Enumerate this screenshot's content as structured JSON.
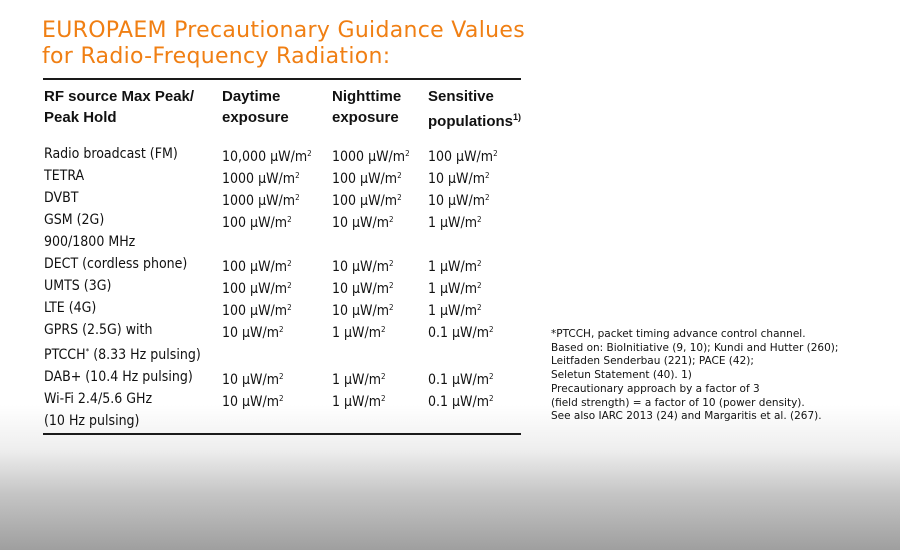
{
  "title": {
    "line1": "EUROPAEM Precautionary Guidance Values",
    "line2": "for Radio-Frequency Radiation:",
    "color": "#f07f13"
  },
  "table": {
    "headers": [
      {
        "line1": "RF source Max Peak/",
        "line2": "Peak Hold",
        "sup": ""
      },
      {
        "line1": "Daytime",
        "line2": "exposure",
        "sup": ""
      },
      {
        "line1": "Nighttime",
        "line2": "exposure",
        "sup": ""
      },
      {
        "line1": "Sensitive",
        "line2": "populations",
        "sup": "1)"
      }
    ],
    "rows": [
      {
        "source": [
          "Radio broadcast (FM)"
        ],
        "day": "10,000 μW/m²",
        "night": "1000 μW/m²",
        "sensitive": "100 μW/m²"
      },
      {
        "source": [
          "TETRA"
        ],
        "day": "1000 μW/m²",
        "night": "100 μW/m²",
        "sensitive": "10 μW/m²"
      },
      {
        "source": [
          "DVBT"
        ],
        "day": "1000 μW/m²",
        "night": "100 μW/m²",
        "sensitive": "10 μW/m²"
      },
      {
        "source": [
          "GSM (2G)",
          "900/1800 MHz"
        ],
        "day": "100 μW/m²",
        "night": "10 μW/m²",
        "sensitive": "1 μW/m²"
      },
      {
        "source": [
          "DECT (cordless phone)"
        ],
        "day": "100 μW/m²",
        "night": "10 μW/m²",
        "sensitive": "1 μW/m²"
      },
      {
        "source": [
          "UMTS (3G)"
        ],
        "day": "100 μW/m²",
        "night": "10 μW/m²",
        "sensitive": "1 μW/m²"
      },
      {
        "source": [
          "LTE (4G)"
        ],
        "day": "100 μW/m²",
        "night": "10 μW/m²",
        "sensitive": "1 μW/m²"
      },
      {
        "source": [
          "GPRS (2.5G) with",
          "PTCCH* (8.33 Hz pulsing)"
        ],
        "day": "10 μW/m²",
        "night": "1 μW/m²",
        "sensitive": "0.1 μW/m²"
      },
      {
        "source": [
          "DAB+ (10.4 Hz pulsing)"
        ],
        "day": "10 μW/m²",
        "night": "1 μW/m²",
        "sensitive": "0.1 μW/m²"
      },
      {
        "source": [
          "Wi-Fi 2.4/5.6 GHz",
          "(10 Hz pulsing)"
        ],
        "day": "10 μW/m²",
        "night": "1 μW/m²",
        "sensitive": "0.1 μW/m²"
      }
    ]
  },
  "notes": [
    "*PTCCH, packet timing advance control channel.",
    "Based on: BioInitiative (9, 10); Kundi and Hutter (260);",
    "Leitfaden Senderbau (221); PACE (42);",
    "Seletun Statement (40). 1)",
    "Precautionary approach by a factor of 3",
    "(field strength) = a factor of 10 (power density).",
    "See also IARC 2013 (24) and Margaritis et al. (267)."
  ]
}
